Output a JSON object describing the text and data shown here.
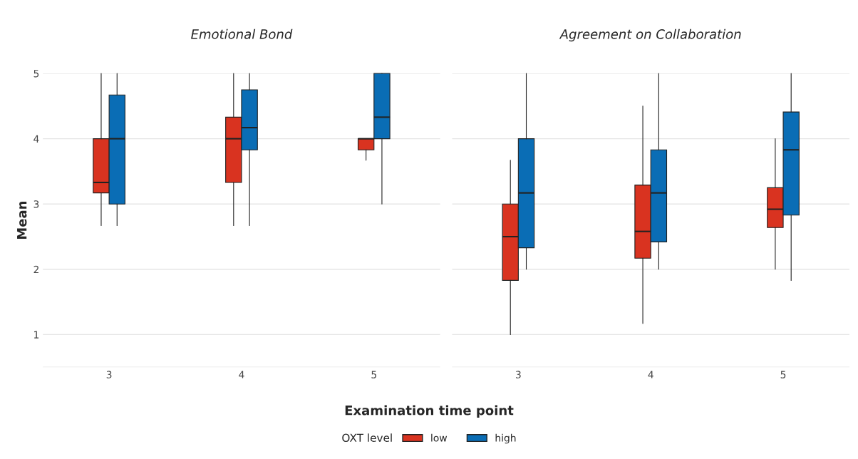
{
  "chart_data": [
    {
      "type": "box",
      "title": "Emotional Bond",
      "xlabel": "Examination time point",
      "ylabel": "Mean",
      "legend_title": "OXT level",
      "legend": "bottom",
      "grid": "y",
      "categories": [
        "3",
        "4",
        "5"
      ],
      "ylim": [
        0.5,
        5
      ],
      "yticks": [
        {
          "value": 0.5,
          "label": null
        },
        1,
        2,
        3,
        4,
        5
      ],
      "series": [
        {
          "name": "low",
          "color": "#d93320",
          "boxes": [
            {
              "low": 2.67,
              "q1": 3.17,
              "median": 3.33,
              "q3": 4.0,
              "high": 5.0
            },
            {
              "low": 2.67,
              "q1": 3.33,
              "median": 4.0,
              "q3": 4.33,
              "high": 5.0
            },
            {
              "low": 3.67,
              "q1": 3.83,
              "median": 4.0,
              "q3": 4.0,
              "high": 4.0
            }
          ]
        },
        {
          "name": "high",
          "color": "#0a6db5",
          "boxes": [
            {
              "low": 2.67,
              "q1": 3.0,
              "median": 4.0,
              "q3": 4.67,
              "high": 5.0
            },
            {
              "low": 2.67,
              "q1": 3.83,
              "median": 4.17,
              "q3": 4.75,
              "high": 5.0
            },
            {
              "low": 3.0,
              "q1": 4.0,
              "median": 4.33,
              "q3": 5.0,
              "high": 5.0
            }
          ]
        }
      ]
    },
    {
      "type": "box",
      "title": "Agreement on Collaboration",
      "grid": "y",
      "tick_labels": "x",
      "categories": [
        "3",
        "4",
        "5"
      ],
      "ylim": [
        0.5,
        5
      ],
      "yticks": [
        {
          "value": 0.5,
          "label": null
        },
        1,
        2,
        3,
        4,
        5
      ],
      "series": [
        {
          "color": "#d93320",
          "boxes": [
            {
              "low": 1.0,
              "q1": 1.83,
              "median": 2.5,
              "q3": 3.0,
              "high": 3.67
            },
            {
              "low": 1.17,
              "q1": 2.17,
              "median": 2.58,
              "q3": 3.29,
              "high": 4.5
            },
            {
              "low": 2.0,
              "q1": 2.64,
              "median": 2.92,
              "q3": 3.25,
              "high": 4.0
            }
          ]
        },
        {
          "color": "#0a6db5",
          "boxes": [
            {
              "low": 2.0,
              "q1": 2.33,
              "median": 3.17,
              "q3": 4.0,
              "high": 5.0
            },
            {
              "low": 2.0,
              "q1": 2.42,
              "median": 3.17,
              "q3": 3.83,
              "high": 5.0
            },
            {
              "low": 1.83,
              "q1": 2.83,
              "median": 3.83,
              "q3": 4.41,
              "high": 5.0
            }
          ]
        }
      ]
    }
  ]
}
